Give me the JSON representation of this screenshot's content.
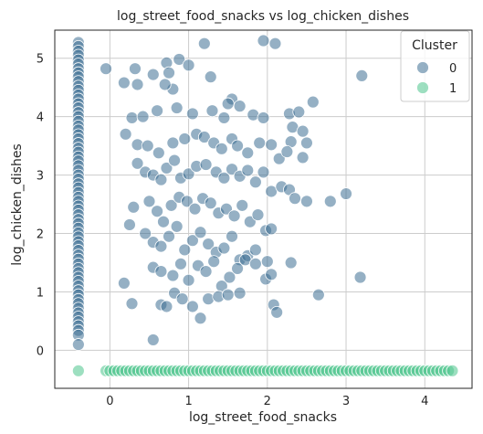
{
  "chart_data": {
    "type": "scatter",
    "title": "log_street_food_snacks vs log_chicken_dishes",
    "xlabel": "log_street_food_snacks",
    "ylabel": "log_chicken_dishes",
    "xlim": [
      -0.7,
      4.6
    ],
    "ylim": [
      -0.65,
      5.48
    ],
    "xticks": [
      0,
      1,
      2,
      3,
      4
    ],
    "yticks": [
      0,
      1,
      2,
      3,
      4,
      5
    ],
    "grid": true,
    "legend": {
      "title": "Cluster",
      "placement": "top-right"
    },
    "series": [
      {
        "name": "0",
        "color": "#3e6f93",
        "points": [
          [
            -0.4,
            5.27
          ],
          [
            -0.4,
            5.2
          ],
          [
            -0.4,
            5.12
          ],
          [
            -0.4,
            5.05
          ],
          [
            -0.4,
            4.97
          ],
          [
            -0.4,
            4.9
          ],
          [
            -0.4,
            4.82
          ],
          [
            -0.4,
            4.75
          ],
          [
            -0.4,
            4.68
          ],
          [
            -0.4,
            4.6
          ],
          [
            -0.4,
            4.52
          ],
          [
            -0.4,
            4.45
          ],
          [
            -0.4,
            4.37
          ],
          [
            -0.4,
            4.3
          ],
          [
            -0.4,
            4.22
          ],
          [
            -0.4,
            4.15
          ],
          [
            -0.4,
            4.07
          ],
          [
            -0.4,
            4.0
          ],
          [
            -0.4,
            3.92
          ],
          [
            -0.4,
            3.84
          ],
          [
            -0.4,
            3.77
          ],
          [
            -0.4,
            3.69
          ],
          [
            -0.4,
            3.62
          ],
          [
            -0.4,
            3.54
          ],
          [
            -0.4,
            3.46
          ],
          [
            -0.4,
            3.39
          ],
          [
            -0.4,
            3.31
          ],
          [
            -0.4,
            3.24
          ],
          [
            -0.4,
            3.16
          ],
          [
            -0.4,
            3.08
          ],
          [
            -0.4,
            3.0
          ],
          [
            -0.4,
            2.93
          ],
          [
            -0.4,
            2.85
          ],
          [
            -0.4,
            2.78
          ],
          [
            -0.4,
            2.7
          ],
          [
            -0.4,
            2.62
          ],
          [
            -0.4,
            2.55
          ],
          [
            -0.4,
            2.47
          ],
          [
            -0.4,
            2.4
          ],
          [
            -0.4,
            2.32
          ],
          [
            -0.4,
            2.24
          ],
          [
            -0.4,
            2.17
          ],
          [
            -0.4,
            2.09
          ],
          [
            -0.4,
            2.01
          ],
          [
            -0.4,
            1.94
          ],
          [
            -0.4,
            1.86
          ],
          [
            -0.4,
            1.79
          ],
          [
            -0.4,
            1.71
          ],
          [
            -0.4,
            1.63
          ],
          [
            -0.4,
            1.56
          ],
          [
            -0.4,
            1.48
          ],
          [
            -0.4,
            1.4
          ],
          [
            -0.4,
            1.33
          ],
          [
            -0.4,
            1.25
          ],
          [
            -0.4,
            1.18
          ],
          [
            -0.4,
            1.1
          ],
          [
            -0.4,
            1.02
          ],
          [
            -0.4,
            0.95
          ],
          [
            -0.4,
            0.87
          ],
          [
            -0.4,
            0.8
          ],
          [
            -0.4,
            0.72
          ],
          [
            -0.4,
            0.64
          ],
          [
            -0.4,
            0.57
          ],
          [
            -0.4,
            0.49
          ],
          [
            -0.4,
            0.42
          ],
          [
            -0.4,
            0.34
          ],
          [
            -0.4,
            0.26
          ],
          [
            -0.4,
            0.1
          ],
          [
            -0.05,
            4.82
          ],
          [
            0.18,
            4.58
          ],
          [
            0.32,
            4.82
          ],
          [
            0.35,
            4.55
          ],
          [
            0.55,
            4.72
          ],
          [
            0.72,
            4.92
          ],
          [
            0.75,
            4.75
          ],
          [
            0.8,
            4.47
          ],
          [
            0.88,
            4.98
          ],
          [
            1.0,
            4.88
          ],
          [
            1.2,
            5.25
          ],
          [
            1.28,
            4.68
          ],
          [
            1.95,
            5.3
          ],
          [
            2.1,
            5.25
          ],
          [
            3.2,
            4.7
          ],
          [
            2.58,
            4.25
          ],
          [
            1.55,
            4.3
          ],
          [
            1.5,
            4.22
          ],
          [
            1.65,
            4.18
          ],
          [
            0.2,
            3.7
          ],
          [
            0.28,
            3.98
          ],
          [
            0.42,
            4.0
          ],
          [
            0.6,
            4.1
          ],
          [
            0.7,
            4.55
          ],
          [
            0.85,
            4.15
          ],
          [
            1.05,
            4.05
          ],
          [
            1.3,
            4.1
          ],
          [
            1.45,
            3.98
          ],
          [
            1.82,
            4.03
          ],
          [
            1.95,
            3.98
          ],
          [
            2.28,
            4.05
          ],
          [
            2.4,
            4.08
          ],
          [
            2.32,
            3.82
          ],
          [
            2.45,
            3.75
          ],
          [
            2.3,
            3.57
          ],
          [
            2.5,
            3.55
          ],
          [
            2.45,
            3.3
          ],
          [
            0.35,
            3.52
          ],
          [
            0.48,
            3.5
          ],
          [
            0.62,
            3.38
          ],
          [
            0.8,
            3.55
          ],
          [
            0.95,
            3.62
          ],
          [
            1.1,
            3.7
          ],
          [
            1.2,
            3.65
          ],
          [
            1.32,
            3.55
          ],
          [
            1.42,
            3.45
          ],
          [
            1.55,
            3.62
          ],
          [
            1.62,
            3.5
          ],
          [
            1.75,
            3.38
          ],
          [
            1.9,
            3.55
          ],
          [
            2.05,
            3.52
          ],
          [
            2.15,
            3.28
          ],
          [
            2.25,
            3.4
          ],
          [
            0.35,
            3.2
          ],
          [
            0.45,
            3.05
          ],
          [
            0.55,
            3.0
          ],
          [
            0.65,
            2.92
          ],
          [
            0.72,
            3.12
          ],
          [
            0.82,
            3.25
          ],
          [
            0.9,
            2.95
          ],
          [
            1.0,
            3.02
          ],
          [
            1.1,
            3.15
          ],
          [
            1.22,
            3.18
          ],
          [
            1.35,
            3.05
          ],
          [
            1.45,
            2.95
          ],
          [
            1.55,
            3.1
          ],
          [
            1.65,
            2.98
          ],
          [
            1.75,
            3.08
          ],
          [
            1.85,
            2.88
          ],
          [
            1.95,
            3.05
          ],
          [
            2.05,
            2.72
          ],
          [
            2.18,
            2.8
          ],
          [
            2.28,
            2.75
          ],
          [
            2.35,
            2.6
          ],
          [
            0.3,
            2.45
          ],
          [
            0.5,
            2.55
          ],
          [
            0.6,
            2.38
          ],
          [
            0.68,
            2.2
          ],
          [
            0.78,
            2.48
          ],
          [
            0.88,
            2.62
          ],
          [
            0.98,
            2.55
          ],
          [
            1.08,
            2.42
          ],
          [
            1.18,
            2.6
          ],
          [
            1.28,
            2.52
          ],
          [
            1.38,
            2.35
          ],
          [
            1.48,
            2.42
          ],
          [
            1.58,
            2.3
          ],
          [
            1.68,
            2.48
          ],
          [
            1.78,
            2.2
          ],
          [
            1.88,
            2.32
          ],
          [
            1.98,
            2.05
          ],
          [
            2.5,
            2.55
          ],
          [
            2.8,
            2.55
          ],
          [
            3.0,
            2.68
          ],
          [
            0.25,
            2.15
          ],
          [
            0.45,
            2.0
          ],
          [
            0.55,
            1.85
          ],
          [
            0.65,
            1.78
          ],
          [
            0.75,
            1.95
          ],
          [
            0.85,
            2.12
          ],
          [
            0.95,
            1.72
          ],
          [
            1.05,
            1.88
          ],
          [
            1.15,
            2.02
          ],
          [
            1.25,
            1.82
          ],
          [
            1.35,
            1.68
          ],
          [
            1.45,
            1.75
          ],
          [
            1.55,
            1.95
          ],
          [
            1.65,
            1.55
          ],
          [
            1.75,
            1.62
          ],
          [
            1.85,
            1.72
          ],
          [
            2.0,
            1.52
          ],
          [
            2.05,
            2.08
          ],
          [
            0.55,
            1.42
          ],
          [
            0.65,
            1.35
          ],
          [
            0.8,
            1.28
          ],
          [
            0.9,
            1.48
          ],
          [
            1.0,
            1.2
          ],
          [
            1.12,
            1.45
          ],
          [
            1.22,
            1.35
          ],
          [
            1.32,
            1.52
          ],
          [
            1.42,
            1.1
          ],
          [
            1.52,
            1.25
          ],
          [
            1.62,
            1.4
          ],
          [
            1.72,
            1.55
          ],
          [
            1.85,
            1.48
          ],
          [
            1.98,
            1.22
          ],
          [
            2.05,
            1.3
          ],
          [
            2.3,
            1.5
          ],
          [
            0.18,
            1.15
          ],
          [
            0.28,
            0.8
          ],
          [
            0.65,
            0.78
          ],
          [
            0.72,
            0.75
          ],
          [
            0.82,
            0.98
          ],
          [
            0.92,
            0.88
          ],
          [
            1.05,
            0.75
          ],
          [
            1.15,
            0.55
          ],
          [
            1.25,
            0.88
          ],
          [
            1.38,
            0.92
          ],
          [
            1.5,
            0.95
          ],
          [
            1.65,
            0.98
          ],
          [
            2.08,
            0.78
          ],
          [
            2.12,
            0.65
          ],
          [
            2.65,
            0.95
          ],
          [
            3.18,
            1.25
          ],
          [
            0.55,
            0.18
          ]
        ]
      },
      {
        "name": "1",
        "color": "#4cc48c",
        "points": [
          [
            -0.4,
            -0.35
          ],
          [
            -0.05,
            -0.35
          ],
          [
            0.0,
            -0.35
          ],
          [
            0.05,
            -0.35
          ],
          [
            0.1,
            -0.35
          ],
          [
            0.15,
            -0.35
          ],
          [
            0.2,
            -0.35
          ],
          [
            0.25,
            -0.35
          ],
          [
            0.3,
            -0.35
          ],
          [
            0.35,
            -0.35
          ],
          [
            0.4,
            -0.35
          ],
          [
            0.45,
            -0.35
          ],
          [
            0.5,
            -0.35
          ],
          [
            0.55,
            -0.35
          ],
          [
            0.6,
            -0.35
          ],
          [
            0.65,
            -0.35
          ],
          [
            0.7,
            -0.35
          ],
          [
            0.75,
            -0.35
          ],
          [
            0.8,
            -0.35
          ],
          [
            0.85,
            -0.35
          ],
          [
            0.9,
            -0.35
          ],
          [
            0.95,
            -0.35
          ],
          [
            1.0,
            -0.35
          ],
          [
            1.05,
            -0.35
          ],
          [
            1.1,
            -0.35
          ],
          [
            1.15,
            -0.35
          ],
          [
            1.2,
            -0.35
          ],
          [
            1.25,
            -0.35
          ],
          [
            1.3,
            -0.35
          ],
          [
            1.35,
            -0.35
          ],
          [
            1.4,
            -0.35
          ],
          [
            1.45,
            -0.35
          ],
          [
            1.5,
            -0.35
          ],
          [
            1.55,
            -0.35
          ],
          [
            1.6,
            -0.35
          ],
          [
            1.65,
            -0.35
          ],
          [
            1.7,
            -0.35
          ],
          [
            1.75,
            -0.35
          ],
          [
            1.8,
            -0.35
          ],
          [
            1.85,
            -0.35
          ],
          [
            1.9,
            -0.35
          ],
          [
            1.95,
            -0.35
          ],
          [
            2.0,
            -0.35
          ],
          [
            2.05,
            -0.35
          ],
          [
            2.1,
            -0.35
          ],
          [
            2.15,
            -0.35
          ],
          [
            2.2,
            -0.35
          ],
          [
            2.25,
            -0.35
          ],
          [
            2.3,
            -0.35
          ],
          [
            2.35,
            -0.35
          ],
          [
            2.4,
            -0.35
          ],
          [
            2.45,
            -0.35
          ],
          [
            2.5,
            -0.35
          ],
          [
            2.55,
            -0.35
          ],
          [
            2.6,
            -0.35
          ],
          [
            2.65,
            -0.35
          ],
          [
            2.7,
            -0.35
          ],
          [
            2.75,
            -0.35
          ],
          [
            2.8,
            -0.35
          ],
          [
            2.85,
            -0.35
          ],
          [
            2.9,
            -0.35
          ],
          [
            2.95,
            -0.35
          ],
          [
            3.0,
            -0.35
          ],
          [
            3.05,
            -0.35
          ],
          [
            3.1,
            -0.35
          ],
          [
            3.15,
            -0.35
          ],
          [
            3.2,
            -0.35
          ],
          [
            3.25,
            -0.35
          ],
          [
            3.3,
            -0.35
          ],
          [
            3.35,
            -0.35
          ],
          [
            3.4,
            -0.35
          ],
          [
            3.45,
            -0.35
          ],
          [
            3.5,
            -0.35
          ],
          [
            3.55,
            -0.35
          ],
          [
            3.6,
            -0.35
          ],
          [
            3.65,
            -0.35
          ],
          [
            3.7,
            -0.35
          ],
          [
            3.75,
            -0.35
          ],
          [
            3.8,
            -0.35
          ],
          [
            3.85,
            -0.35
          ],
          [
            3.9,
            -0.35
          ],
          [
            3.95,
            -0.35
          ],
          [
            4.0,
            -0.35
          ],
          [
            4.05,
            -0.35
          ],
          [
            4.1,
            -0.35
          ],
          [
            4.15,
            -0.35
          ],
          [
            4.2,
            -0.35
          ],
          [
            4.25,
            -0.35
          ],
          [
            4.3,
            -0.35
          ],
          [
            4.35,
            -0.35
          ]
        ]
      }
    ]
  }
}
